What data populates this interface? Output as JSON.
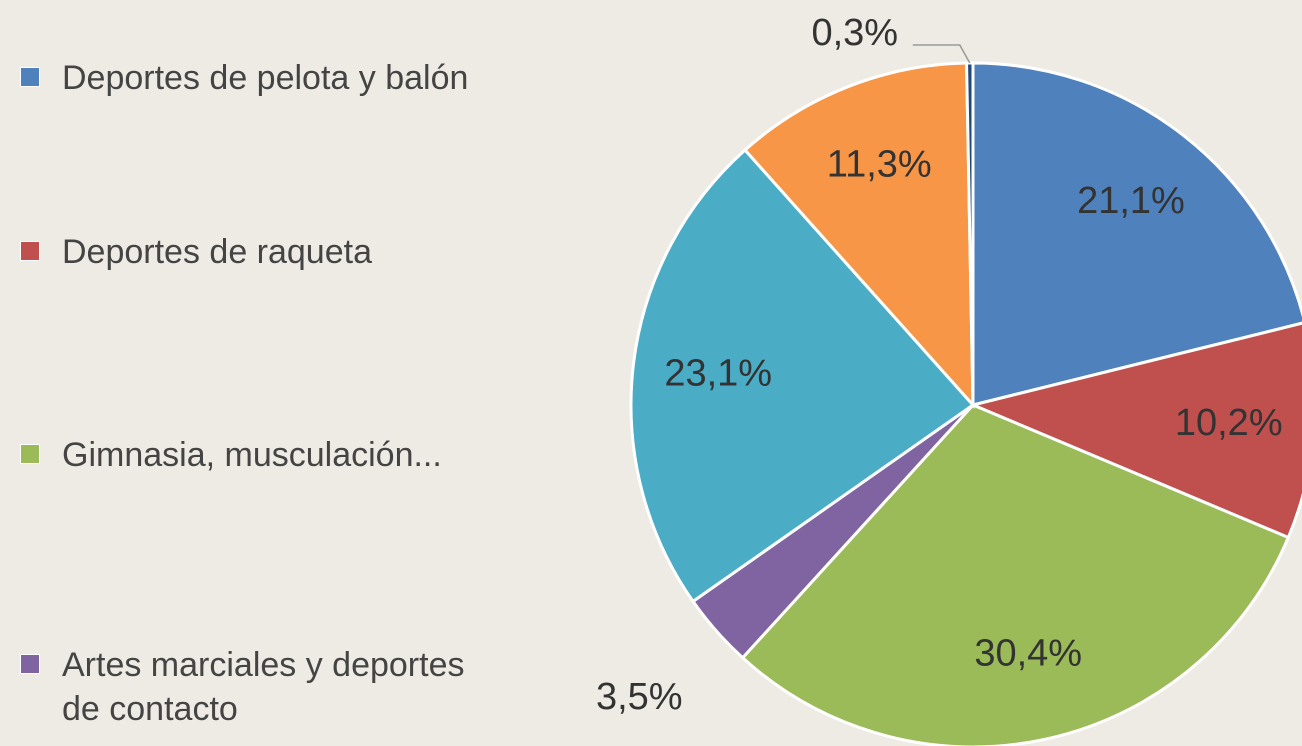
{
  "chart_data": {
    "type": "pie",
    "categories": [
      "Deportes de pelota y balón",
      "Deportes de raqueta",
      "Gimnasia, musculación...",
      "Artes marciales y deportes de contacto",
      null,
      null,
      null
    ],
    "values": [
      21.1,
      10.2,
      30.4,
      3.5,
      23.1,
      11.3,
      0.3
    ],
    "value_labels": [
      "21,1%",
      "10,2%",
      "30,4%",
      "3,5%",
      "23,1%",
      "11,3%",
      "0,3%"
    ],
    "colors": [
      "#4f81bd",
      "#c0504d",
      "#9bbb59",
      "#8064a2",
      "#4bacc6",
      "#f79646",
      "#1f497d"
    ],
    "legend": "left"
  }
}
